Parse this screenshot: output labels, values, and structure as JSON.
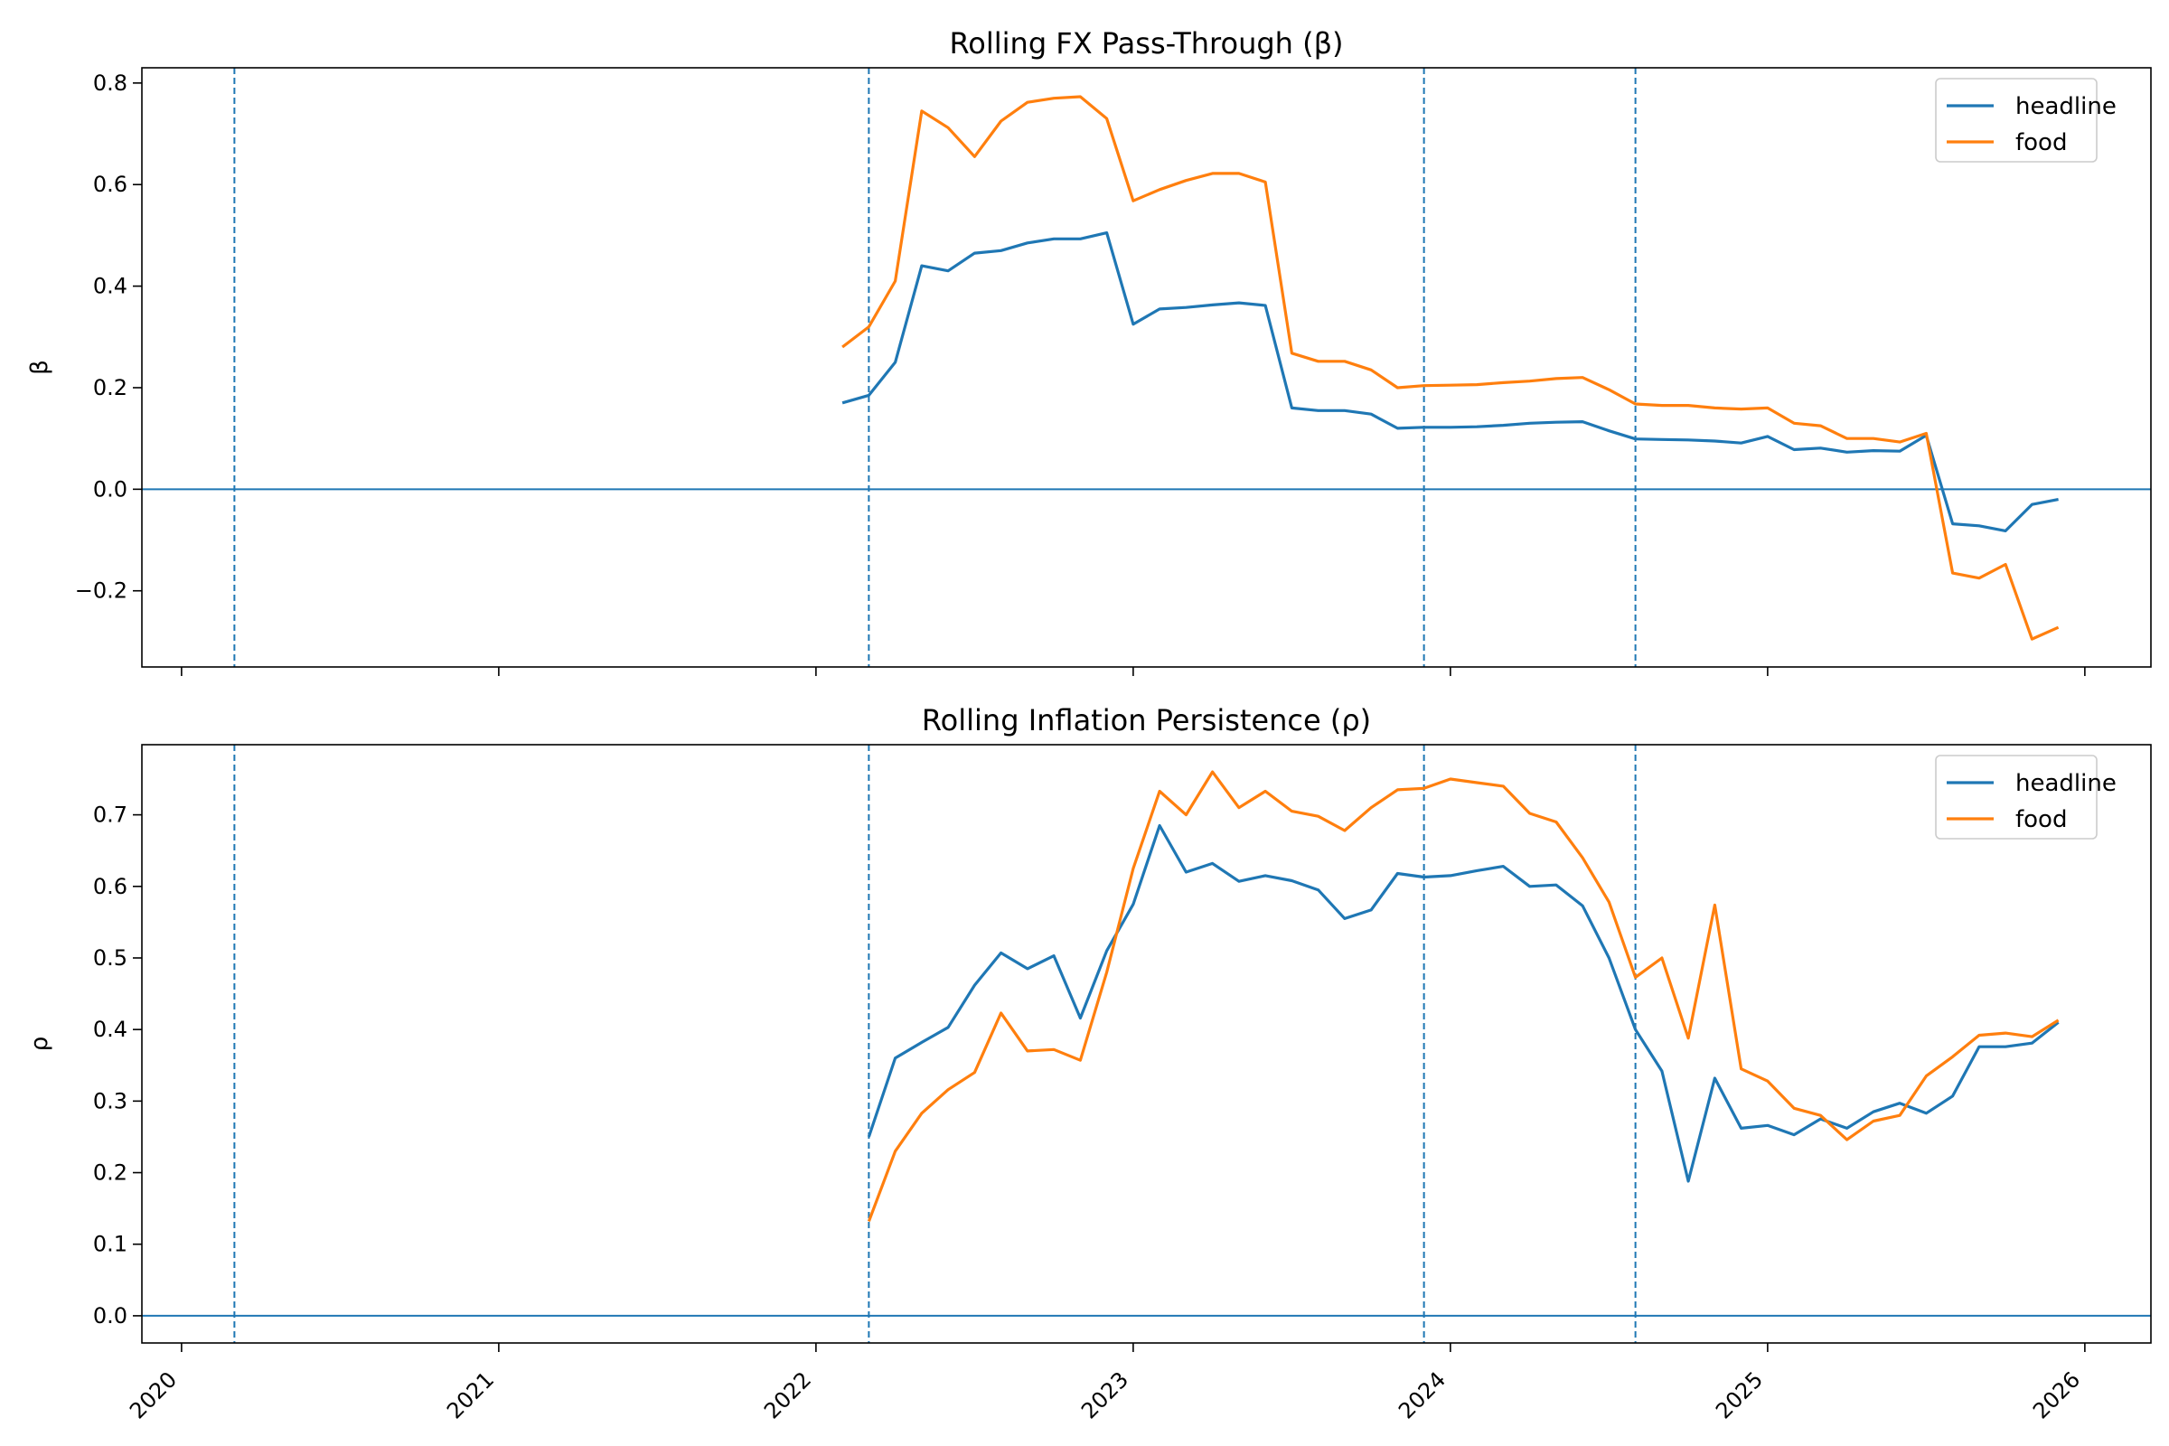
{
  "chart_data": [
    {
      "type": "line",
      "title": "Rolling FX Pass-Through (β)",
      "xlabel": "",
      "ylabel": "β",
      "ylim": [
        -0.35,
        0.83
      ],
      "yticks": [
        -0.2,
        0.0,
        0.2,
        0.4,
        0.6,
        0.8
      ],
      "ytick_labels": [
        "−0.2",
        "0.0",
        "0.2",
        "0.4",
        "0.6",
        "0.8"
      ],
      "x_axis_labels_shown": false,
      "horizontal_line": 0.0,
      "vertical_lines": [
        "2020-03",
        "2022-03",
        "2023-12",
        "2024-08"
      ],
      "legend_position": "upper right",
      "series": [
        {
          "name": "headline",
          "color": "#1f77b4",
          "x": [
            "2022-02",
            "2022-03",
            "2022-04",
            "2022-05",
            "2022-06",
            "2022-07",
            "2022-08",
            "2022-09",
            "2022-10",
            "2022-11",
            "2022-12",
            "2023-01",
            "2023-02",
            "2023-03",
            "2023-04",
            "2023-05",
            "2023-06",
            "2023-07",
            "2023-08",
            "2023-09",
            "2023-10",
            "2023-11",
            "2023-12",
            "2024-01",
            "2024-02",
            "2024-03",
            "2024-04",
            "2024-05",
            "2024-06",
            "2024-07",
            "2024-08",
            "2024-09",
            "2024-10",
            "2024-11",
            "2024-12",
            "2025-01",
            "2025-02",
            "2025-03",
            "2025-04",
            "2025-05",
            "2025-06",
            "2025-07",
            "2025-08",
            "2025-09",
            "2025-10",
            "2025-11",
            "2025-12"
          ],
          "values": [
            0.17,
            0.185,
            0.25,
            0.44,
            0.43,
            0.465,
            0.47,
            0.485,
            0.493,
            0.493,
            0.505,
            0.325,
            0.355,
            0.358,
            0.363,
            0.367,
            0.362,
            0.16,
            0.155,
            0.155,
            0.148,
            0.12,
            0.122,
            0.122,
            0.123,
            0.126,
            0.13,
            0.132,
            0.133,
            0.115,
            0.099,
            0.098,
            0.097,
            0.095,
            0.091,
            0.104,
            0.078,
            0.081,
            0.073,
            0.076,
            0.075,
            0.106,
            -0.068,
            -0.072,
            -0.082,
            -0.03,
            -0.02
          ]
        },
        {
          "name": "food",
          "color": "#ff7f0e",
          "x": [
            "2022-02",
            "2022-03",
            "2022-04",
            "2022-05",
            "2022-06",
            "2022-07",
            "2022-08",
            "2022-09",
            "2022-10",
            "2022-11",
            "2022-12",
            "2023-01",
            "2023-02",
            "2023-03",
            "2023-04",
            "2023-05",
            "2023-06",
            "2023-07",
            "2023-08",
            "2023-09",
            "2023-10",
            "2023-11",
            "2023-12",
            "2024-01",
            "2024-02",
            "2024-03",
            "2024-04",
            "2024-05",
            "2024-06",
            "2024-07",
            "2024-08",
            "2024-09",
            "2024-10",
            "2024-11",
            "2024-12",
            "2025-01",
            "2025-02",
            "2025-03",
            "2025-04",
            "2025-05",
            "2025-06",
            "2025-07",
            "2025-08",
            "2025-09",
            "2025-10",
            "2025-11",
            "2025-12"
          ],
          "values": [
            0.28,
            0.32,
            0.41,
            0.745,
            0.712,
            0.655,
            0.725,
            0.762,
            0.77,
            0.773,
            0.73,
            0.568,
            0.59,
            0.608,
            0.622,
            0.622,
            0.605,
            0.268,
            0.252,
            0.252,
            0.235,
            0.2,
            0.204,
            0.205,
            0.206,
            0.21,
            0.213,
            0.218,
            0.22,
            0.196,
            0.168,
            0.165,
            0.165,
            0.16,
            0.158,
            0.16,
            0.13,
            0.125,
            0.1,
            0.1,
            0.093,
            0.11,
            -0.165,
            -0.175,
            -0.148,
            -0.295,
            -0.272
          ]
        }
      ]
    },
    {
      "type": "line",
      "title": "Rolling Inflation Persistence (ρ)",
      "xlabel": "",
      "ylabel": "ρ",
      "ylim": [
        -0.038,
        0.798
      ],
      "yticks": [
        0.0,
        0.1,
        0.2,
        0.3,
        0.4,
        0.5,
        0.6,
        0.7
      ],
      "ytick_labels": [
        "0.0",
        "0.1",
        "0.2",
        "0.3",
        "0.4",
        "0.5",
        "0.6",
        "0.7"
      ],
      "xticks": [
        "2020",
        "2021",
        "2022",
        "2023",
        "2024",
        "2025",
        "2026"
      ],
      "horizontal_line": 0.0,
      "vertical_lines": [
        "2020-03",
        "2022-03",
        "2023-12",
        "2024-08"
      ],
      "legend_position": "upper right",
      "series": [
        {
          "name": "headline",
          "color": "#1f77b4",
          "x": [
            "2022-03",
            "2022-04",
            "2022-05",
            "2022-06",
            "2022-07",
            "2022-08",
            "2022-09",
            "2022-10",
            "2022-11",
            "2022-12",
            "2023-01",
            "2023-02",
            "2023-03",
            "2023-04",
            "2023-05",
            "2023-06",
            "2023-07",
            "2023-08",
            "2023-09",
            "2023-10",
            "2023-11",
            "2023-12",
            "2024-01",
            "2024-02",
            "2024-03",
            "2024-04",
            "2024-05",
            "2024-06",
            "2024-07",
            "2024-08",
            "2024-09",
            "2024-10",
            "2024-11",
            "2024-12",
            "2025-01",
            "2025-02",
            "2025-03",
            "2025-04",
            "2025-05",
            "2025-06",
            "2025-07",
            "2025-08",
            "2025-09",
            "2025-10",
            "2025-11",
            "2025-12"
          ],
          "values": [
            0.25,
            0.36,
            0.382,
            0.403,
            0.462,
            0.507,
            0.485,
            0.503,
            0.416,
            0.51,
            0.575,
            0.685,
            0.62,
            0.632,
            0.607,
            0.615,
            0.608,
            0.595,
            0.555,
            0.567,
            0.618,
            0.613,
            0.615,
            0.622,
            0.628,
            0.6,
            0.602,
            0.573,
            0.5,
            0.4,
            0.342,
            0.188,
            0.332,
            0.262,
            0.266,
            0.253,
            0.275,
            0.262,
            0.285,
            0.297,
            0.283,
            0.307,
            0.376,
            0.376,
            0.381,
            0.41
          ]
        },
        {
          "name": "food",
          "color": "#ff7f0e",
          "x": [
            "2022-03",
            "2022-04",
            "2022-05",
            "2022-06",
            "2022-07",
            "2022-08",
            "2022-09",
            "2022-10",
            "2022-11",
            "2022-12",
            "2023-01",
            "2023-02",
            "2023-03",
            "2023-04",
            "2023-05",
            "2023-06",
            "2023-07",
            "2023-08",
            "2023-09",
            "2023-10",
            "2023-11",
            "2023-12",
            "2024-01",
            "2024-02",
            "2024-03",
            "2024-04",
            "2024-05",
            "2024-06",
            "2024-07",
            "2024-08",
            "2024-09",
            "2024-10",
            "2024-11",
            "2024-12",
            "2025-01",
            "2025-02",
            "2025-03",
            "2025-04",
            "2025-05",
            "2025-06",
            "2025-07",
            "2025-08",
            "2025-09",
            "2025-10",
            "2025-11",
            "2025-12"
          ],
          "values": [
            0.132,
            0.23,
            0.283,
            0.316,
            0.34,
            0.423,
            0.37,
            0.372,
            0.357,
            0.48,
            0.625,
            0.733,
            0.7,
            0.76,
            0.71,
            0.733,
            0.705,
            0.698,
            0.678,
            0.71,
            0.735,
            0.737,
            0.75,
            0.745,
            0.74,
            0.702,
            0.69,
            0.64,
            0.578,
            0.473,
            0.5,
            0.388,
            0.574,
            0.345,
            0.328,
            0.29,
            0.28,
            0.246,
            0.272,
            0.28,
            0.335,
            0.362,
            0.392,
            0.395,
            0.39,
            0.413
          ]
        }
      ]
    }
  ]
}
